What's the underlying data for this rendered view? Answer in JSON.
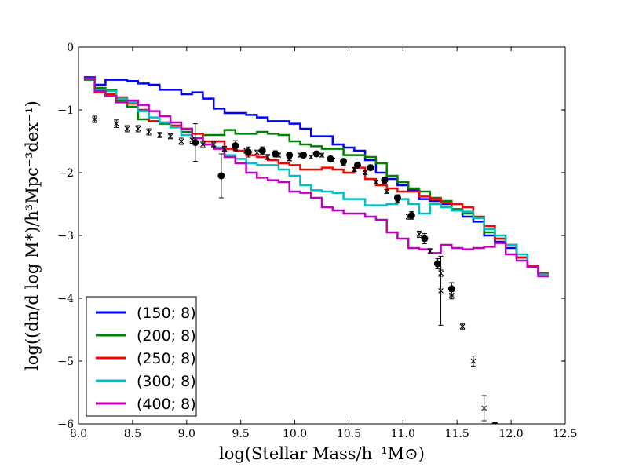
{
  "chart_data": {
    "type": "line",
    "title": "",
    "xlabel": "log(Stellar Mass/h⁻¹M⊙)",
    "ylabel": "log((dn/d log M*)/h³Mpc⁻³dex⁻¹)",
    "xlim": [
      8.0,
      12.5
    ],
    "ylim": [
      -6,
      0
    ],
    "xticks": [
      "8.0",
      "8.5",
      "9.0",
      "9.5",
      "10.0",
      "10.5",
      "11.0",
      "11.5",
      "12.0",
      "12.5"
    ],
    "yticks": [
      "0",
      "−1",
      "−2",
      "−3",
      "−4",
      "−5",
      "−6"
    ],
    "grid": false,
    "legend_position": "lower-left",
    "bin_edges": [
      8.05,
      8.15,
      8.25,
      8.35,
      8.45,
      8.55,
      8.65,
      8.75,
      8.85,
      8.95,
      9.05,
      9.15,
      9.25,
      9.35,
      9.45,
      9.55,
      9.65,
      9.75,
      9.85,
      9.95,
      10.05,
      10.15,
      10.25,
      10.35,
      10.45,
      10.55,
      10.65,
      10.75,
      10.85,
      10.95,
      11.05,
      11.15,
      11.25,
      11.35,
      11.45,
      11.55,
      11.65,
      11.75,
      11.85,
      11.95,
      12.05,
      12.15,
      12.25,
      12.35
    ],
    "series": [
      {
        "name": "(150; 8)",
        "color": "#0000ff",
        "values": [
          -0.48,
          -0.6,
          -0.52,
          -0.52,
          -0.54,
          -0.58,
          -0.6,
          -0.68,
          -0.68,
          -0.75,
          -0.72,
          -0.82,
          -0.98,
          -1.05,
          -1.05,
          -1.08,
          -1.12,
          -1.18,
          -1.18,
          -1.22,
          -1.3,
          -1.42,
          -1.42,
          -1.55,
          -1.6,
          -1.65,
          -1.8,
          -2.0,
          -2.1,
          -2.2,
          -2.28,
          -2.42,
          -2.45,
          -2.5,
          -2.6,
          -2.7,
          -2.78,
          -3.0,
          -3.1,
          -3.2,
          -3.35,
          -3.5,
          -3.62
        ]
      },
      {
        "name": "(200; 8)",
        "color": "#008000",
        "values": [
          -0.52,
          -0.65,
          -0.68,
          -0.85,
          -0.95,
          -1.15,
          -1.18,
          -1.22,
          -1.25,
          -1.35,
          -1.38,
          -1.4,
          -1.4,
          -1.32,
          -1.38,
          -1.38,
          -1.35,
          -1.38,
          -1.4,
          -1.5,
          -1.55,
          -1.58,
          -1.62,
          -1.62,
          -1.72,
          -1.72,
          -1.75,
          -1.85,
          -2.05,
          -2.15,
          -2.25,
          -2.3,
          -2.4,
          -2.45,
          -2.58,
          -2.65,
          -2.72,
          -2.95,
          -3.05,
          -3.15,
          -3.35,
          -3.5,
          -3.6
        ]
      },
      {
        "name": "(250; 8)",
        "color": "#ff0000",
        "values": [
          -0.5,
          -0.72,
          -0.75,
          -0.8,
          -0.9,
          -1.0,
          -1.18,
          -1.2,
          -1.25,
          -1.3,
          -1.38,
          -1.5,
          -1.5,
          -1.62,
          -1.65,
          -1.72,
          -1.75,
          -1.8,
          -1.85,
          -1.88,
          -1.95,
          -1.95,
          -1.92,
          -1.95,
          -2.0,
          -1.92,
          -2.1,
          -2.2,
          -2.25,
          -2.3,
          -2.3,
          -2.38,
          -2.42,
          -2.48,
          -2.5,
          -2.55,
          -2.7,
          -2.85,
          -3.05,
          -3.15,
          -3.35,
          -3.48,
          -3.6
        ]
      },
      {
        "name": "(300; 8)",
        "color": "#00bfbf",
        "values": [
          -0.5,
          -0.68,
          -0.7,
          -0.82,
          -0.88,
          -1.02,
          -1.12,
          -1.2,
          -1.28,
          -1.4,
          -1.45,
          -1.55,
          -1.6,
          -1.72,
          -1.78,
          -1.85,
          -1.88,
          -1.88,
          -1.95,
          -2.05,
          -2.2,
          -2.28,
          -2.3,
          -2.32,
          -2.42,
          -2.42,
          -2.52,
          -2.52,
          -2.5,
          -2.42,
          -2.5,
          -2.65,
          -2.5,
          -2.55,
          -2.6,
          -2.62,
          -2.72,
          -2.9,
          -3.0,
          -3.15,
          -3.3,
          -3.5,
          -3.62
        ]
      },
      {
        "name": "(400; 8)",
        "color": "#bf00bf",
        "values": [
          -0.5,
          -0.7,
          -0.78,
          -0.88,
          -0.85,
          -0.92,
          -1.02,
          -1.1,
          -1.2,
          -1.3,
          -1.45,
          -1.55,
          -1.62,
          -1.75,
          -1.85,
          -2.0,
          -2.08,
          -2.12,
          -2.15,
          -2.3,
          -2.32,
          -2.4,
          -2.55,
          -2.6,
          -2.65,
          -2.65,
          -2.7,
          -2.75,
          -2.95,
          -3.05,
          -3.2,
          -3.22,
          -3.28,
          -3.15,
          -3.2,
          -3.22,
          -3.2,
          -3.18,
          -3.12,
          -3.3,
          -3.4,
          -3.5,
          -3.65
        ]
      }
    ],
    "observations_dots": {
      "marker": "filled-circle",
      "points": [
        {
          "x": 9.08,
          "y": -1.52,
          "err": 0.3
        },
        {
          "x": 9.32,
          "y": -2.05,
          "err": 0.35
        },
        {
          "x": 9.45,
          "y": -1.57,
          "err": 0.08
        },
        {
          "x": 9.57,
          "y": -1.67,
          "err": 0.08
        },
        {
          "x": 9.7,
          "y": -1.65,
          "err": 0.06
        },
        {
          "x": 9.82,
          "y": -1.7,
          "err": 0.05
        },
        {
          "x": 9.95,
          "y": -1.72,
          "err": 0.05
        },
        {
          "x": 10.08,
          "y": -1.72,
          "err": 0.04
        },
        {
          "x": 10.2,
          "y": -1.7,
          "err": 0.04
        },
        {
          "x": 10.33,
          "y": -1.78,
          "err": 0.04
        },
        {
          "x": 10.45,
          "y": -1.82,
          "err": 0.04
        },
        {
          "x": 10.58,
          "y": -1.88,
          "err": 0.04
        },
        {
          "x": 10.7,
          "y": -1.92,
          "err": 0.04
        },
        {
          "x": 10.83,
          "y": -2.12,
          "err": 0.05
        },
        {
          "x": 10.95,
          "y": -2.4,
          "err": 0.05
        },
        {
          "x": 11.08,
          "y": -2.68,
          "err": 0.06
        },
        {
          "x": 11.2,
          "y": -3.05,
          "err": 0.08
        },
        {
          "x": 11.32,
          "y": -3.45,
          "err": 0.08
        },
        {
          "x": 11.45,
          "y": -3.85,
          "err": 0.1
        },
        {
          "x": 11.85,
          "y": -6.02,
          "err": 0.0
        }
      ]
    },
    "observations_crosses": {
      "marker": "x",
      "points": [
        {
          "x": 8.15,
          "y": -1.15,
          "err": 0.05
        },
        {
          "x": 8.35,
          "y": -1.22,
          "err": 0.06
        },
        {
          "x": 8.45,
          "y": -1.3,
          "err": 0.05
        },
        {
          "x": 8.55,
          "y": -1.3,
          "err": 0.05
        },
        {
          "x": 8.65,
          "y": -1.35,
          "err": 0.05
        },
        {
          "x": 8.75,
          "y": -1.4,
          "err": 0.04
        },
        {
          "x": 8.85,
          "y": -1.42,
          "err": 0.04
        },
        {
          "x": 8.95,
          "y": -1.5,
          "err": 0.05
        },
        {
          "x": 9.05,
          "y": -1.48,
          "err": 0.05
        },
        {
          "x": 9.15,
          "y": -1.55,
          "err": 0.05
        },
        {
          "x": 9.25,
          "y": -1.55,
          "err": 0.04
        },
        {
          "x": 9.35,
          "y": -1.62,
          "err": 0.04
        },
        {
          "x": 9.45,
          "y": -1.6,
          "err": 0.04
        },
        {
          "x": 9.55,
          "y": -1.65,
          "err": 0.04
        },
        {
          "x": 9.65,
          "y": -1.68,
          "err": 0.04
        },
        {
          "x": 9.75,
          "y": -1.75,
          "err": 0.04
        },
        {
          "x": 9.85,
          "y": -1.72,
          "err": 0.03
        },
        {
          "x": 9.95,
          "y": -1.78,
          "err": 0.03
        },
        {
          "x": 10.05,
          "y": -1.72,
          "err": 0.03
        },
        {
          "x": 10.15,
          "y": -1.75,
          "err": 0.03
        },
        {
          "x": 10.25,
          "y": -1.72,
          "err": 0.03
        },
        {
          "x": 10.35,
          "y": -1.8,
          "err": 0.03
        },
        {
          "x": 10.45,
          "y": -1.85,
          "err": 0.03
        },
        {
          "x": 10.55,
          "y": -1.95,
          "err": 0.03
        },
        {
          "x": 10.65,
          "y": -2.0,
          "err": 0.03
        },
        {
          "x": 10.75,
          "y": -2.15,
          "err": 0.03
        },
        {
          "x": 10.85,
          "y": -2.3,
          "err": 0.03
        },
        {
          "x": 10.95,
          "y": -2.45,
          "err": 0.03
        },
        {
          "x": 11.05,
          "y": -2.7,
          "err": 0.04
        },
        {
          "x": 11.15,
          "y": -2.98,
          "err": 0.05
        },
        {
          "x": 11.25,
          "y": -3.25,
          "err": 0.04
        },
        {
          "x": 11.35,
          "y": -3.6,
          "err": 0.05
        },
        {
          "x": 11.35,
          "y": -3.88,
          "err": 0.55
        },
        {
          "x": 11.45,
          "y": -3.95,
          "err": 0.06
        },
        {
          "x": 11.55,
          "y": -4.45,
          "err": 0.04
        },
        {
          "x": 11.65,
          "y": -5.0,
          "err": 0.08
        },
        {
          "x": 11.75,
          "y": -5.75,
          "err": 0.2
        }
      ]
    }
  }
}
